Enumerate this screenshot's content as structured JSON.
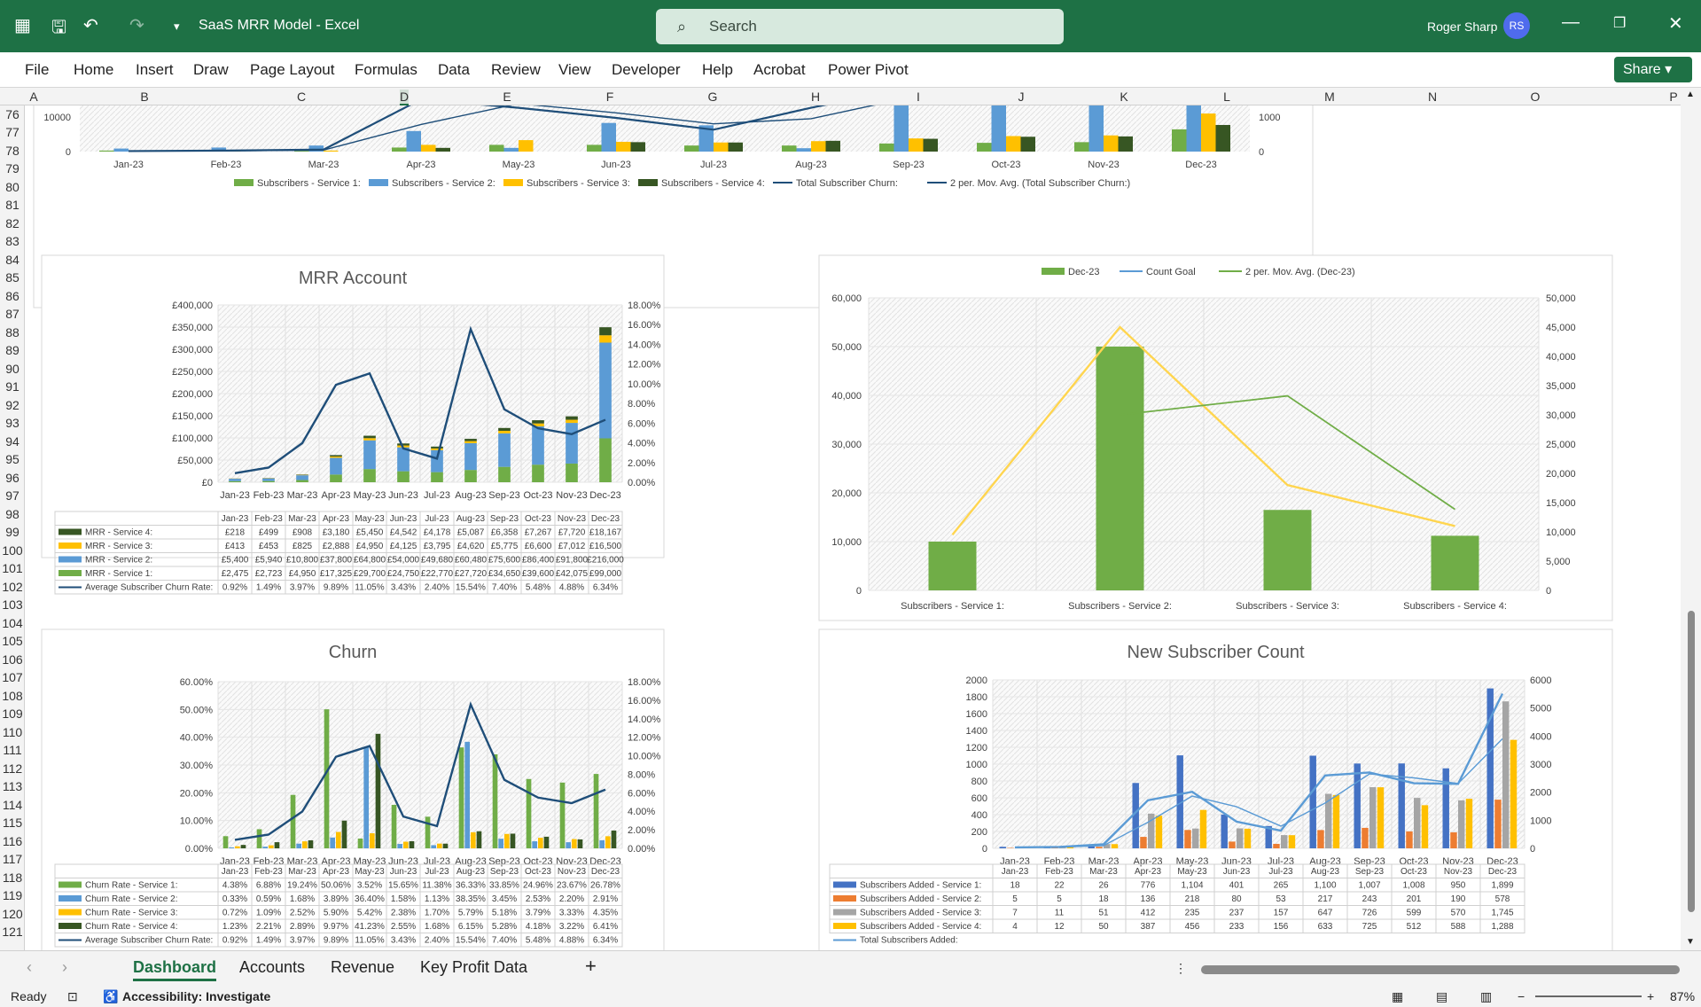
{
  "window": {
    "app_title": "SaaS MRR Model  -  Excel",
    "search_placeholder": "Search",
    "user_name": "Roger Sharp",
    "user_initials": "RS"
  },
  "menu": [
    "File",
    "Home",
    "Insert",
    "Draw",
    "Page Layout",
    "Formulas",
    "Data",
    "Review",
    "View",
    "Developer",
    "Help",
    "Acrobat",
    "Power Pivot"
  ],
  "share_label": "Share",
  "columns": [
    "A",
    "B",
    "C",
    "D",
    "E",
    "F",
    "G",
    "H",
    "I",
    "J",
    "K",
    "L",
    "M",
    "N",
    "O",
    "P"
  ],
  "rows": [
    "76",
    "77",
    "78",
    "79",
    "80",
    "81",
    "82",
    "83",
    "84",
    "85",
    "86",
    "87",
    "88",
    "89",
    "90",
    "91",
    "92",
    "93",
    "94",
    "95",
    "96",
    "97",
    "98",
    "99",
    "100",
    "101",
    "102",
    "103",
    "104",
    "105",
    "106",
    "107",
    "108",
    "109",
    "110",
    "111",
    "112",
    "113",
    "114",
    "115",
    "116",
    "117",
    "118",
    "119",
    "120",
    "121"
  ],
  "tabs": [
    "Dashboard",
    "Accounts",
    "Revenue",
    "Key Profit Data"
  ],
  "status": {
    "ready": "Ready",
    "accessibility": "Accessibility: Investigate",
    "zoom": "87%"
  },
  "months": [
    "Jan-23",
    "Feb-23",
    "Mar-23",
    "Apr-23",
    "May-23",
    "Jun-23",
    "Jul-23",
    "Aug-23",
    "Sep-23",
    "Oct-23",
    "Nov-23",
    "Dec-23"
  ],
  "chart_data": [
    {
      "type": "bar",
      "categories": [
        "Jan-23",
        "Feb-23",
        "Mar-23",
        "Apr-23",
        "May-23",
        "Jun-23",
        "Jul-23",
        "Aug-23",
        "Sep-23",
        "Oct-23",
        "Nov-23",
        "Dec-23"
      ],
      "left_ticks": [
        "10000",
        "0"
      ],
      "right_ticks": [
        "1000",
        "0"
      ],
      "legend": [
        "Subscribers - Service 1:",
        "Subscribers - Service 2:",
        "Subscribers - Service 3:",
        "Subscribers - Service 4:",
        "Total Subscriber Churn:",
        "2 per. Mov. Avg. (Total Subscriber Churn:)"
      ],
      "colors": [
        "#70ad47",
        "#5b9bd5",
        "#ffc000",
        "#375623",
        "#1f4e79",
        "#1f4e79"
      ],
      "series": [
        {
          "name": "Subscribers - Service 1:",
          "values": [
            300,
            300,
            600,
            1200,
            2000,
            2000,
            1800,
            1800,
            2400,
            2600,
            2800,
            6600
          ]
        },
        {
          "name": "Subscribers - Service 2:",
          "values": [
            900,
            1200,
            1800,
            6100,
            1100,
            8500,
            7800,
            1000,
            16000,
            18000,
            19000,
            22000
          ]
        },
        {
          "name": "Subscribers - Service 3:",
          "values": [
            0,
            200,
            300,
            2000,
            3400,
            2900,
            2700,
            3100,
            3900,
            4600,
            4800,
            11300
          ]
        },
        {
          "name": "Subscribers - Service 4:",
          "values": [
            0,
            0,
            0,
            1100,
            0,
            2800,
            2700,
            3200,
            3800,
            4400,
            4500,
            7900
          ]
        },
        {
          "name": "Total Subscriber Churn:",
          "values": [
            15,
            30,
            60,
            1550,
            1300,
            1000,
            650,
            1300,
            1900,
            2300,
            2400,
            2600
          ]
        },
        {
          "name": "2 per. Mov. Avg. (Total Subscriber Churn:)",
          "values": [
            null,
            22,
            45,
            805,
            1425,
            1150,
            825,
            975,
            1600,
            2100,
            2350,
            2500
          ]
        }
      ]
    },
    {
      "type": "bar",
      "title": "MRR Account",
      "categories": [
        "Jan-23",
        "Feb-23",
        "Mar-23",
        "Apr-23",
        "May-23",
        "Jun-23",
        "Jul-23",
        "Aug-23",
        "Sep-23",
        "Oct-23",
        "Nov-23",
        "Dec-23"
      ],
      "left_ticks": [
        "£400,000",
        "£350,000",
        "£300,000",
        "£250,000",
        "£200,000",
        "£150,000",
        "£100,000",
        "£50,000",
        "£0"
      ],
      "right_ticks": [
        "18.00%",
        "16.00%",
        "14.00%",
        "12.00%",
        "10.00%",
        "8.00%",
        "6.00%",
        "4.00%",
        "2.00%",
        "0.00%"
      ],
      "ylim": [
        0,
        400000
      ],
      "y2lim": [
        0,
        18
      ],
      "series": [
        {
          "name": "MRR - Service 4:",
          "color": "#375623",
          "cells": [
            "£218",
            "£499",
            "£908",
            "£3,180",
            "£5,450",
            "£4,542",
            "£4,178",
            "£5,087",
            "£6,358",
            "£7,267",
            "£7,720",
            "£18,167"
          ],
          "values": [
            218,
            499,
            908,
            3180,
            5450,
            4542,
            4178,
            5087,
            6358,
            7267,
            7720,
            18167
          ]
        },
        {
          "name": "MRR - Service 3:",
          "color": "#ffc000",
          "cells": [
            "£413",
            "£453",
            "£825",
            "£2,888",
            "£4,950",
            "£4,125",
            "£3,795",
            "£4,620",
            "£5,775",
            "£6,600",
            "£7,012",
            "£16,500"
          ],
          "values": [
            413,
            453,
            825,
            2888,
            4950,
            4125,
            3795,
            4620,
            5775,
            6600,
            7012,
            16500
          ]
        },
        {
          "name": "MRR - Service 2:",
          "color": "#5b9bd5",
          "cells": [
            "£5,400",
            "£5,940",
            "£10,800",
            "£37,800",
            "£64,800",
            "£54,000",
            "£49,680",
            "£60,480",
            "£75,600",
            "£86,400",
            "£91,800",
            "£216,000"
          ],
          "values": [
            5400,
            5940,
            10800,
            37800,
            64800,
            54000,
            49680,
            60480,
            75600,
            86400,
            91800,
            216000
          ]
        },
        {
          "name": "MRR - Service 1:",
          "color": "#70ad47",
          "cells": [
            "£2,475",
            "£2,723",
            "£4,950",
            "£17,325",
            "£29,700",
            "£24,750",
            "£22,770",
            "£27,720",
            "£34,650",
            "£39,600",
            "£42,075",
            "£99,000"
          ],
          "values": [
            2475,
            2723,
            4950,
            17325,
            29700,
            24750,
            22770,
            27720,
            34650,
            39600,
            42075,
            99000
          ]
        },
        {
          "name": "Average Subscriber Churn Rate:",
          "color": "#1f4e79",
          "line": true,
          "cells": [
            "0.92%",
            "1.49%",
            "3.97%",
            "9.89%",
            "11.05%",
            "3.43%",
            "2.40%",
            "15.54%",
            "7.40%",
            "5.48%",
            "4.88%",
            "6.34%"
          ],
          "values": [
            0.92,
            1.49,
            3.97,
            9.89,
            11.05,
            3.43,
            2.4,
            15.54,
            7.4,
            5.48,
            4.88,
            6.34
          ]
        }
      ]
    },
    {
      "type": "bar",
      "categories": [
        "Subscribers - Service 1:",
        "Subscribers - Service 2:",
        "Subscribers - Service 3:",
        "Subscribers - Service 4:"
      ],
      "left_ticks": [
        "60,000",
        "50,000",
        "40,000",
        "30,000",
        "20,000",
        "10,000",
        "0"
      ],
      "right_ticks": [
        "50,000",
        "45,000",
        "40,000",
        "35,000",
        "30,000",
        "25,000",
        "20,000",
        "15,000",
        "10,000",
        "5,000",
        "0"
      ],
      "legend": [
        "Dec-23",
        "Count Goal",
        "2 per. Mov. Avg. (Dec-23)"
      ],
      "ylim": [
        0,
        60000
      ],
      "y2lim": [
        0,
        50000
      ],
      "series": [
        {
          "name": "Dec-23",
          "color": "#70ad47",
          "values": [
            10000,
            50000,
            16500,
            11200
          ]
        },
        {
          "name": "Count Goal",
          "color": "#ffd54f",
          "values": [
            9500,
            45000,
            18000,
            11000
          ]
        },
        {
          "name": "2 per. Mov. Avg. (Dec-23)",
          "color": "#70ad47",
          "values": [
            null,
            30000,
            33250,
            13850
          ]
        }
      ]
    },
    {
      "type": "bar",
      "title": "Churn",
      "categories": [
        "Jan-23",
        "Feb-23",
        "Mar-23",
        "Apr-23",
        "May-23",
        "Jun-23",
        "Jul-23",
        "Aug-23",
        "Sep-23",
        "Oct-23",
        "Nov-23",
        "Dec-23"
      ],
      "left_ticks": [
        "60.00%",
        "50.00%",
        "40.00%",
        "30.00%",
        "20.00%",
        "10.00%",
        "0.00%"
      ],
      "right_ticks": [
        "18.00%",
        "16.00%",
        "14.00%",
        "12.00%",
        "10.00%",
        "8.00%",
        "6.00%",
        "4.00%",
        "2.00%",
        "0.00%"
      ],
      "ylim": [
        0,
        60
      ],
      "y2lim": [
        0,
        18
      ],
      "series": [
        {
          "name": "Churn Rate - Service 1:",
          "color": "#70ad47",
          "cells": [
            "4.38%",
            "6.88%",
            "19.24%",
            "50.06%",
            "3.52%",
            "15.65%",
            "11.38%",
            "36.33%",
            "33.85%",
            "24.96%",
            "23.67%",
            "26.78%"
          ],
          "values": [
            4.38,
            6.88,
            19.24,
            50.06,
            3.52,
            15.65,
            11.38,
            36.33,
            33.85,
            24.96,
            23.67,
            26.78
          ]
        },
        {
          "name": "Churn Rate - Service 2:",
          "color": "#5b9bd5",
          "cells": [
            "0.33%",
            "0.59%",
            "1.68%",
            "3.89%",
            "36.40%",
            "1.58%",
            "1.13%",
            "38.35%",
            "3.45%",
            "2.53%",
            "2.20%",
            "2.91%"
          ],
          "values": [
            0.33,
            0.59,
            1.68,
            3.89,
            36.4,
            1.58,
            1.13,
            38.35,
            3.45,
            2.53,
            2.2,
            2.91
          ]
        },
        {
          "name": "Churn Rate - Service 3:",
          "color": "#ffc000",
          "cells": [
            "0.72%",
            "1.09%",
            "2.52%",
            "5.90%",
            "5.42%",
            "2.38%",
            "1.70%",
            "5.79%",
            "5.18%",
            "3.79%",
            "3.33%",
            "4.35%"
          ],
          "values": [
            0.72,
            1.09,
            2.52,
            5.9,
            5.42,
            2.38,
            1.7,
            5.79,
            5.18,
            3.79,
            3.33,
            4.35
          ]
        },
        {
          "name": "Churn Rate - Service 4:",
          "color": "#375623",
          "cells": [
            "1.23%",
            "2.21%",
            "2.89%",
            "9.97%",
            "41.23%",
            "2.55%",
            "1.68%",
            "6.15%",
            "5.28%",
            "4.18%",
            "3.22%",
            "6.41%"
          ],
          "values": [
            1.23,
            2.21,
            2.89,
            9.97,
            41.23,
            2.55,
            1.68,
            6.15,
            5.28,
            4.18,
            3.22,
            6.41
          ]
        },
        {
          "name": "Average Subscriber Churn Rate:",
          "color": "#1f4e79",
          "line": true,
          "cells": [
            "0.92%",
            "1.49%",
            "3.97%",
            "9.89%",
            "11.05%",
            "3.43%",
            "2.40%",
            "15.54%",
            "7.40%",
            "5.48%",
            "4.88%",
            "6.34%"
          ],
          "values": [
            0.92,
            1.49,
            3.97,
            9.89,
            11.05,
            3.43,
            2.4,
            15.54,
            7.4,
            5.48,
            4.88,
            6.34
          ]
        }
      ]
    },
    {
      "type": "bar",
      "title": "New Subscriber Count",
      "categories": [
        "Jan-23",
        "Feb-23",
        "Mar-23",
        "Apr-23",
        "May-23",
        "Jun-23",
        "Jul-23",
        "Aug-23",
        "Sep-23",
        "Oct-23",
        "Nov-23",
        "Dec-23"
      ],
      "left_ticks": [
        "2000",
        "1800",
        "1600",
        "1400",
        "1200",
        "1000",
        "800",
        "600",
        "400",
        "200",
        "0"
      ],
      "right_ticks": [
        "6000",
        "5000",
        "4000",
        "3000",
        "2000",
        "1000",
        "0"
      ],
      "ylim": [
        0,
        2000
      ],
      "y2lim": [
        0,
        6000
      ],
      "series": [
        {
          "name": "Subscribers Added - Service 1:",
          "color": "#4472c4",
          "cells": [
            "18",
            "22",
            "26",
            "776",
            "1,104",
            "401",
            "265",
            "1,100",
            "1,007",
            "1,008",
            "950",
            "1,899"
          ],
          "values": [
            18,
            22,
            26,
            776,
            1104,
            401,
            265,
            1100,
            1007,
            1008,
            950,
            1899
          ]
        },
        {
          "name": "Subscribers Added - Service 2:",
          "color": "#ed7d31",
          "cells": [
            "5",
            "5",
            "18",
            "136",
            "218",
            "80",
            "53",
            "217",
            "243",
            "201",
            "190",
            "578"
          ],
          "values": [
            5,
            5,
            18,
            136,
            218,
            80,
            53,
            217,
            243,
            201,
            190,
            578
          ]
        },
        {
          "name": "Subscribers Added - Service 3:",
          "color": "#a5a5a5",
          "cells": [
            "7",
            "11",
            "51",
            "412",
            "235",
            "237",
            "157",
            "647",
            "726",
            "599",
            "570",
            "1,745"
          ],
          "values": [
            7,
            11,
            51,
            412,
            235,
            237,
            157,
            647,
            726,
            599,
            570,
            1745
          ]
        },
        {
          "name": "Subscribers Added - Service 4:",
          "color": "#ffc000",
          "cells": [
            "4",
            "12",
            "50",
            "387",
            "456",
            "233",
            "156",
            "633",
            "725",
            "512",
            "588",
            "1,288"
          ],
          "values": [
            4,
            12,
            50,
            387,
            456,
            233,
            156,
            633,
            725,
            512,
            588,
            1288
          ]
        },
        {
          "name": "Total Subscribers Added:",
          "color": "#5b9bd5",
          "line": true,
          "values": [
            34,
            50,
            145,
            1711,
            2013,
            951,
            631,
            2597,
            2701,
            2320,
            2298,
            5510
          ]
        }
      ]
    }
  ]
}
